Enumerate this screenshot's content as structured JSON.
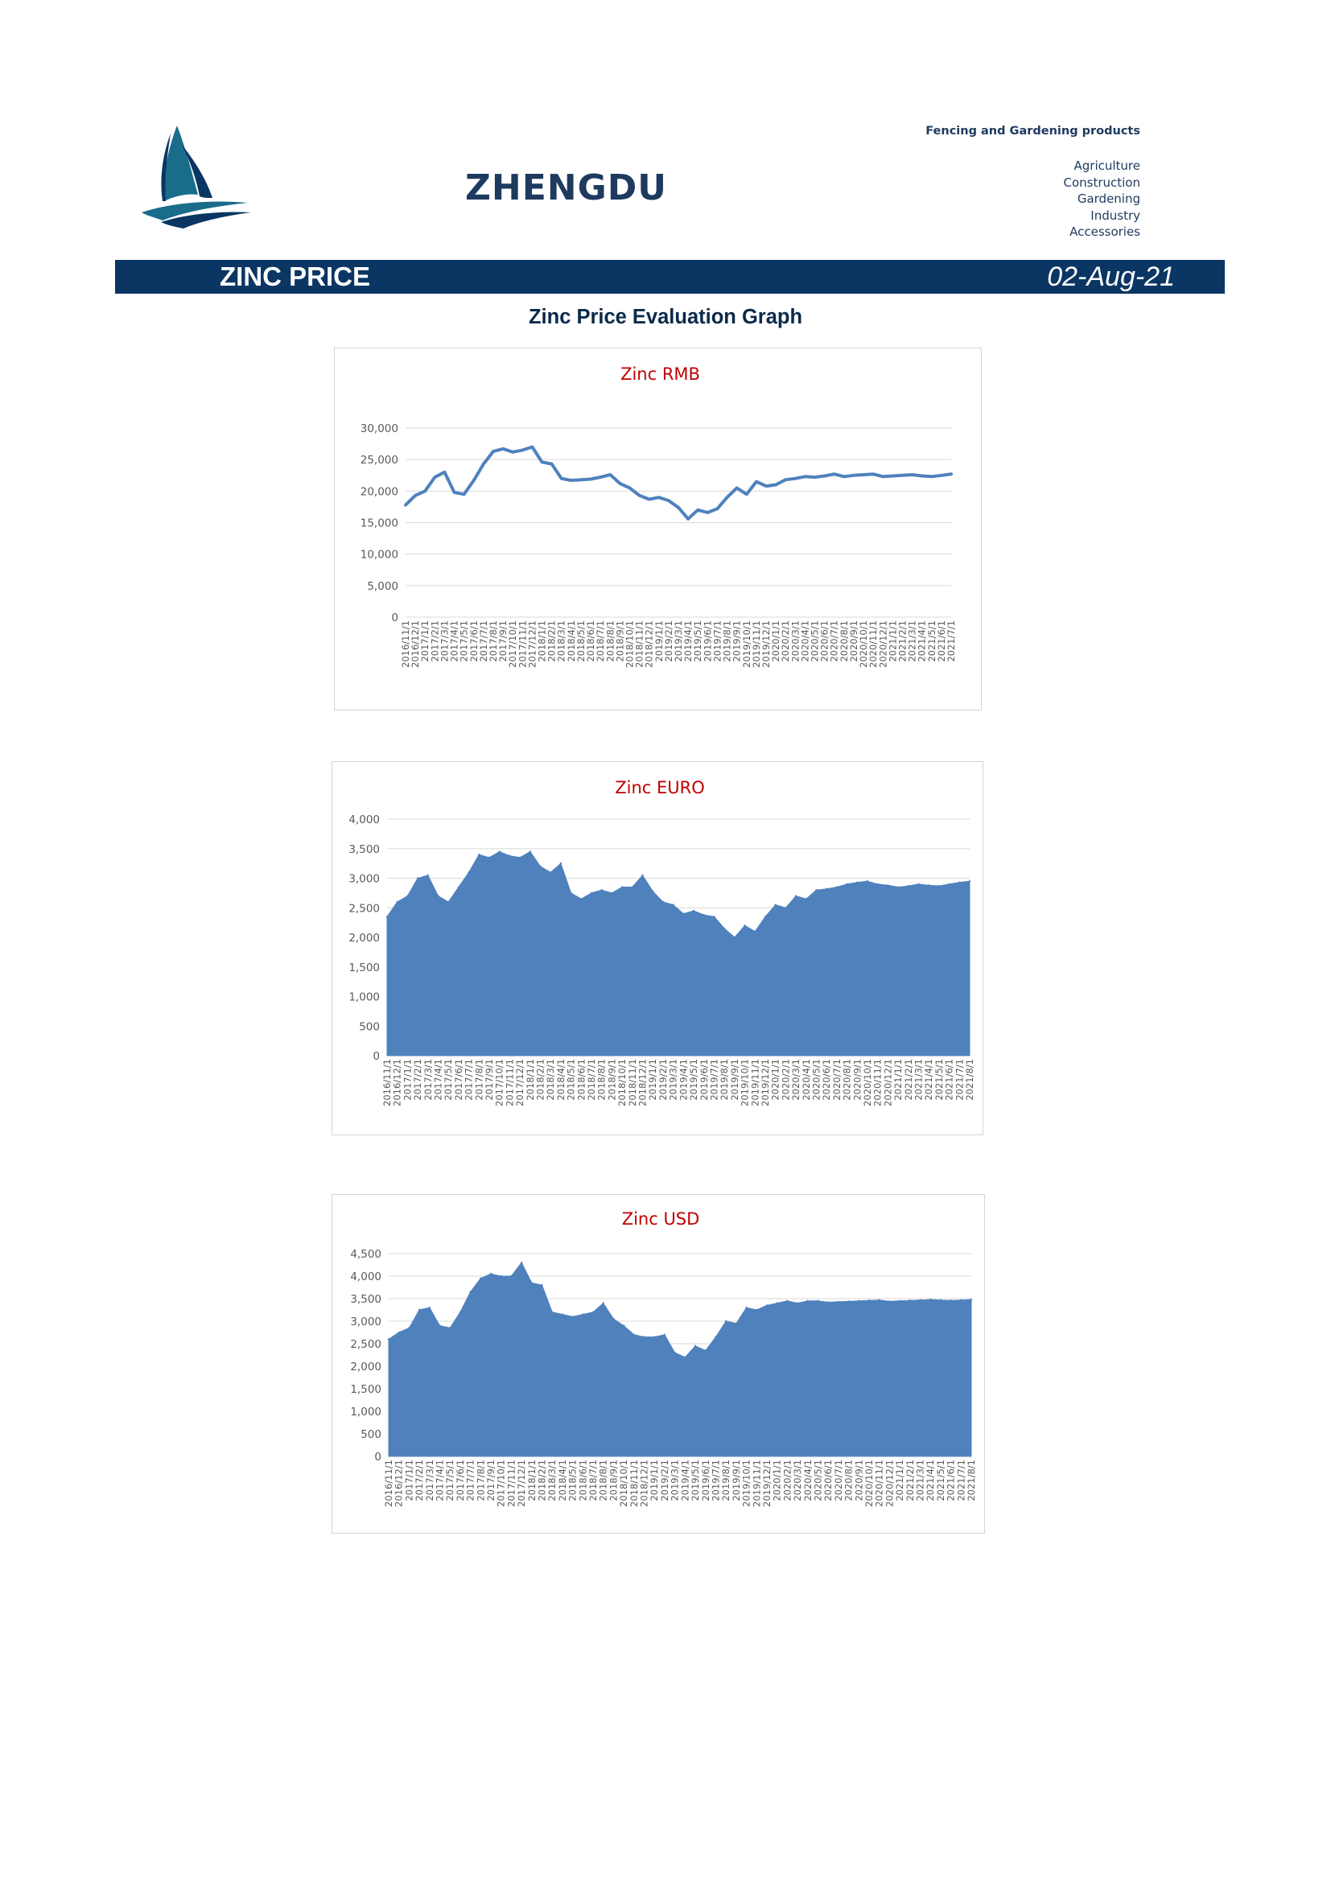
{
  "header": {
    "brand": "ZHENGDU",
    "tagline": "Fencing and Gardening products",
    "segments": [
      "Agriculture",
      "Construction",
      "Gardening",
      "Industry",
      "Accessories"
    ],
    "logo_icon": "sailboat-logo-icon",
    "logo_colors": [
      "#1a6d8a",
      "#0b3663"
    ]
  },
  "banner": {
    "title": "ZINC PRICE",
    "date": "02-Aug-21",
    "color": "#0b3663"
  },
  "page_heading": "Zinc Price Evaluation Graph",
  "chart_data": [
    {
      "type": "line",
      "title": "Zinc RMB",
      "xlabel": "",
      "ylabel": "",
      "ylim": [
        0,
        30000
      ],
      "yticks": [
        0,
        5000,
        10000,
        15000,
        20000,
        25000,
        30000
      ],
      "ytick_labels": [
        "0",
        "5,000",
        "10,000",
        "15,000",
        "20,000",
        "25,000",
        "30,000"
      ],
      "grid": true,
      "legend": "none",
      "color": "#4f81bd",
      "categories": [
        "2016/11/1",
        "2016/12/1",
        "2017/1/1",
        "2017/2/1",
        "2017/3/1",
        "2017/4/1",
        "2017/5/1",
        "2017/6/1",
        "2017/7/1",
        "2017/8/1",
        "2017/9/1",
        "2017/10/1",
        "2017/11/1",
        "2017/12/1",
        "2018/1/1",
        "2018/2/1",
        "2018/3/1",
        "2018/4/1",
        "2018/5/1",
        "2018/6/1",
        "2018/7/1",
        "2018/8/1",
        "2018/9/1",
        "2018/10/1",
        "2018/11/1",
        "2018/12/1",
        "2019/1/1",
        "2019/2/1",
        "2019/3/1",
        "2019/4/1",
        "2019/5/1",
        "2019/6/1",
        "2019/7/1",
        "2019/8/1",
        "2019/9/1",
        "2019/10/1",
        "2019/11/1",
        "2019/12/1",
        "2020/1/1",
        "2020/2/1",
        "2020/3/1",
        "2020/4/1",
        "2020/5/1",
        "2020/6/1",
        "2020/7/1",
        "2020/8/1",
        "2020/9/1",
        "2020/10/1",
        "2020/11/1",
        "2020/12/1",
        "2021/1/1",
        "2021/2/1",
        "2021/3/1",
        "2021/4/1",
        "2021/5/1",
        "2021/6/1",
        "2021/7/1"
      ],
      "values": [
        17800,
        19300,
        20000,
        22200,
        23000,
        19800,
        19500,
        21700,
        24300,
        26300,
        26700,
        26200,
        26500,
        27000,
        24600,
        24300,
        22000,
        21700,
        21800,
        21900,
        22200,
        22600,
        21200,
        20500,
        19300,
        18700,
        19000,
        18500,
        17400,
        15600,
        17000,
        16600,
        17200,
        19000,
        20500,
        19500,
        21500,
        20800,
        21000,
        21800,
        22000,
        22300,
        22200,
        22400,
        22700,
        22300,
        22500,
        22600,
        22700,
        22300,
        22400,
        22500,
        22600,
        22400,
        22300,
        22500,
        22700
      ]
    },
    {
      "type": "area",
      "title": "Zinc EURO",
      "xlabel": "",
      "ylabel": "",
      "ylim": [
        0,
        4000
      ],
      "yticks": [
        0,
        500,
        1000,
        1500,
        2000,
        2500,
        3000,
        3500,
        4000
      ],
      "ytick_labels": [
        "0",
        "500",
        "1,000",
        "1,500",
        "2,000",
        "2,500",
        "3,000",
        "3,500",
        "4,000"
      ],
      "grid": true,
      "legend": "none",
      "color": "#4f81bd",
      "categories": [
        "2016/11/1",
        "2016/12/1",
        "2017/1/1",
        "2017/2/1",
        "2017/3/1",
        "2017/4/1",
        "2017/5/1",
        "2017/6/1",
        "2017/7/1",
        "2017/8/1",
        "2017/9/1",
        "2017/10/1",
        "2017/11/1",
        "2017/12/1",
        "2018/1/1",
        "2018/2/1",
        "2018/3/1",
        "2018/4/1",
        "2018/5/1",
        "2018/6/1",
        "2018/7/1",
        "2018/8/1",
        "2018/9/1",
        "2018/10/1",
        "2018/11/1",
        "2018/12/1",
        "2019/1/1",
        "2019/2/1",
        "2019/3/1",
        "2019/4/1",
        "2019/5/1",
        "2019/6/1",
        "2019/7/1",
        "2019/8/1",
        "2019/9/1",
        "2019/10/1",
        "2019/11/1",
        "2019/12/1",
        "2020/1/1",
        "2020/2/1",
        "2020/3/1",
        "2020/4/1",
        "2020/5/1",
        "2020/6/1",
        "2020/7/1",
        "2020/8/1",
        "2020/9/1",
        "2020/10/1",
        "2020/11/1",
        "2020/12/1",
        "2021/1/1",
        "2021/2/1",
        "2021/3/1",
        "2021/4/1",
        "2021/5/1",
        "2021/6/1",
        "2021/7/1",
        "2021/8/1"
      ],
      "values": [
        2350,
        2600,
        2700,
        3000,
        3050,
        2700,
        2600,
        2850,
        3100,
        3400,
        3350,
        3450,
        3380,
        3350,
        3450,
        3200,
        3100,
        3250,
        2750,
        2650,
        2750,
        2800,
        2750,
        2850,
        2850,
        3050,
        2780,
        2600,
        2550,
        2400,
        2450,
        2380,
        2350,
        2150,
        2000,
        2200,
        2100,
        2350,
        2550,
        2500,
        2700,
        2650,
        2800,
        2820,
        2850,
        2900,
        2930,
        2950,
        2900,
        2880,
        2850,
        2870,
        2900,
        2880,
        2870,
        2900,
        2930,
        2950
      ]
    },
    {
      "type": "area",
      "title": "Zinc USD",
      "xlabel": "",
      "ylabel": "",
      "ylim": [
        0,
        4500
      ],
      "yticks": [
        0,
        500,
        1000,
        1500,
        2000,
        2500,
        3000,
        3500,
        4000,
        4500
      ],
      "ytick_labels": [
        "0",
        "500",
        "1,000",
        "1,500",
        "2,000",
        "2,500",
        "3,000",
        "3,500",
        "4,000",
        "4,500"
      ],
      "grid": true,
      "legend": "none",
      "color": "#4f81bd",
      "categories": [
        "2016/11/1",
        "2016/12/1",
        "2017/1/1",
        "2017/2/1",
        "2017/3/1",
        "2017/4/1",
        "2017/5/1",
        "2017/6/1",
        "2017/7/1",
        "2017/8/1",
        "2017/9/1",
        "2017/10/1",
        "2017/11/1",
        "2017/12/1",
        "2018/1/1",
        "2018/2/1",
        "2018/3/1",
        "2018/4/1",
        "2018/5/1",
        "2018/6/1",
        "2018/7/1",
        "2018/8/1",
        "2018/9/1",
        "2018/10/1",
        "2018/11/1",
        "2018/12/1",
        "2019/1/1",
        "2019/2/1",
        "2019/3/1",
        "2019/4/1",
        "2019/5/1",
        "2019/6/1",
        "2019/7/1",
        "2019/8/1",
        "2019/9/1",
        "2019/10/1",
        "2019/11/1",
        "2019/12/1",
        "2020/1/1",
        "2020/2/1",
        "2020/3/1",
        "2020/4/1",
        "2020/5/1",
        "2020/6/1",
        "2020/7/1",
        "2020/8/1",
        "2020/9/1",
        "2020/10/1",
        "2020/11/1",
        "2020/12/1",
        "2021/1/1",
        "2021/2/1",
        "2021/3/1",
        "2021/4/1",
        "2021/5/1",
        "2021/6/1",
        "2021/7/1",
        "2021/8/1"
      ],
      "values": [
        2600,
        2750,
        2850,
        3250,
        3300,
        2900,
        2850,
        3200,
        3650,
        3950,
        4050,
        4000,
        4000,
        4300,
        3850,
        3800,
        3200,
        3150,
        3100,
        3150,
        3200,
        3400,
        3050,
        2900,
        2700,
        2650,
        2650,
        2700,
        2300,
        2200,
        2450,
        2350,
        2650,
        3000,
        2950,
        3300,
        3250,
        3350,
        3400,
        3450,
        3400,
        3450,
        3450,
        3420,
        3430,
        3440,
        3450,
        3460,
        3470,
        3440,
        3450,
        3460,
        3470,
        3480,
        3470,
        3460,
        3470,
        3480
      ]
    }
  ]
}
